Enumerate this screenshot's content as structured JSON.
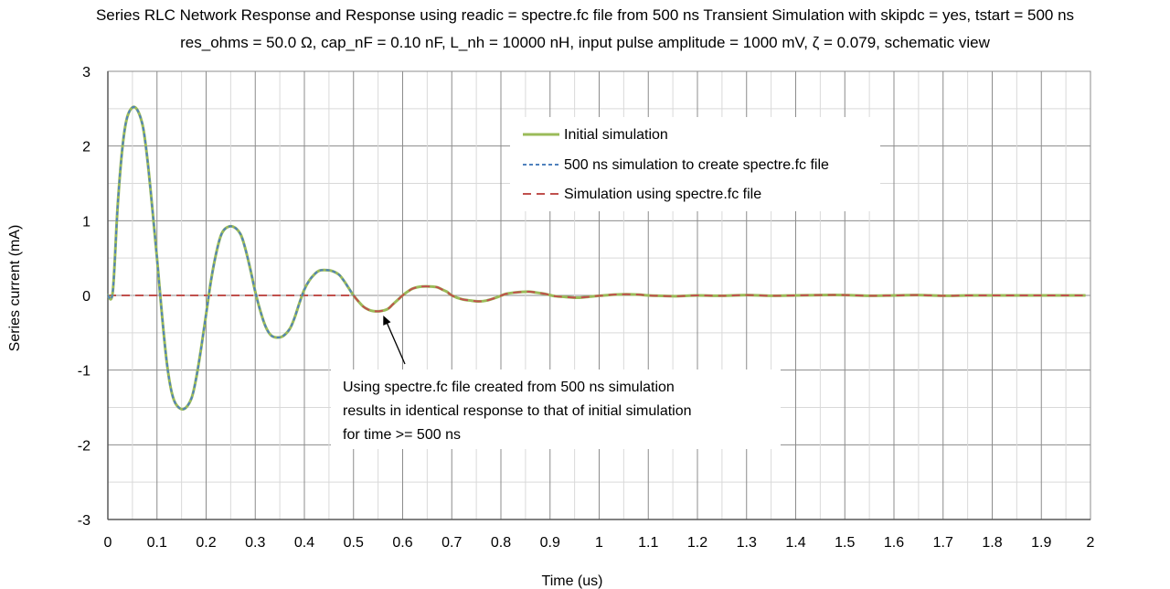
{
  "chart_data": {
    "type": "line",
    "title_lines": [
      "Series RLC Network Response and Response using readic =  spectre.fc file from 500 ns Transient Simulation with skipdc = yes, tstart = 500 ns",
      "res_ohms = 50.0 Ω, cap_nF = 0.10 nF, L_nh = 10000 nH, input pulse amplitude = 1000 mV, ζ  = 0.079, schematic view"
    ],
    "xlabel": "Time (us)",
    "ylabel": "Series current (mA)",
    "xlim": [
      0,
      2
    ],
    "ylim": [
      -3,
      3
    ],
    "x_ticks": [
      "0",
      "0.1",
      "0.2",
      "0.3",
      "0.4",
      "0.5",
      "0.6",
      "0.7",
      "0.8",
      "0.9",
      "1",
      "1.1",
      "1.2",
      "1.3",
      "1.4",
      "1.5",
      "1.6",
      "1.7",
      "1.8",
      "1.9",
      "2"
    ],
    "y_ticks": [
      "3",
      "2",
      "1",
      "0",
      "-1",
      "-2",
      "-3"
    ],
    "grid": true,
    "legend_position": "upper-right",
    "series": [
      {
        "name": "Initial simulation",
        "color": "#9bbb59",
        "style": "solid",
        "x": [
          0,
          0.01,
          0.02,
          0.03,
          0.04,
          0.055,
          0.07,
          0.08,
          0.09,
          0.1,
          0.11,
          0.12,
          0.13,
          0.14,
          0.155,
          0.17,
          0.18,
          0.19,
          0.2,
          0.21,
          0.22,
          0.23,
          0.24,
          0.255,
          0.27,
          0.28,
          0.29,
          0.3,
          0.31,
          0.32,
          0.33,
          0.34,
          0.355,
          0.37,
          0.38,
          0.39,
          0.4,
          0.41,
          0.42,
          0.43,
          0.44,
          0.455,
          0.47,
          0.48,
          0.49,
          0.5,
          0.51,
          0.52,
          0.53,
          0.54,
          0.555,
          0.57,
          0.58,
          0.59,
          0.6,
          0.61,
          0.62,
          0.63,
          0.64,
          0.655,
          0.67,
          0.68,
          0.69,
          0.7,
          0.72,
          0.74,
          0.755,
          0.77,
          0.79,
          0.81,
          0.83,
          0.855,
          0.87,
          0.89,
          0.91,
          0.93,
          0.955,
          0.97,
          0.99,
          1.01,
          1.03,
          1.055,
          1.08,
          1.1,
          1.12,
          1.155,
          1.2,
          1.25,
          1.3,
          1.35,
          1.4,
          1.45,
          1.5,
          1.55,
          1.6,
          1.65,
          1.7,
          1.75,
          1.8,
          1.85,
          1.9,
          1.95,
          1.99
        ],
        "y": [
          0,
          0.05,
          1.2,
          2.0,
          2.4,
          2.52,
          2.3,
          1.85,
          1.2,
          0.5,
          -0.25,
          -0.9,
          -1.3,
          -1.47,
          -1.52,
          -1.38,
          -1.1,
          -0.7,
          -0.25,
          0.2,
          0.55,
          0.8,
          0.9,
          0.92,
          0.82,
          0.62,
          0.35,
          0.05,
          -0.2,
          -0.4,
          -0.52,
          -0.56,
          -0.55,
          -0.45,
          -0.3,
          -0.1,
          0.08,
          0.2,
          0.28,
          0.33,
          0.34,
          0.33,
          0.28,
          0.2,
          0.1,
          0.0,
          -0.08,
          -0.15,
          -0.19,
          -0.21,
          -0.21,
          -0.18,
          -0.12,
          -0.06,
          0.0,
          0.05,
          0.09,
          0.11,
          0.12,
          0.12,
          0.11,
          0.08,
          0.05,
          0.0,
          -0.05,
          -0.07,
          -0.08,
          -0.07,
          -0.03,
          0.02,
          0.04,
          0.05,
          0.04,
          0.02,
          -0.01,
          -0.02,
          -0.03,
          -0.025,
          -0.01,
          0.0,
          0.01,
          0.015,
          0.01,
          0.0,
          -0.005,
          -0.01,
          0.0,
          -0.005,
          0.005,
          -0.005,
          0.0,
          0.005,
          0.005,
          -0.005,
          0.0,
          0.005,
          -0.005,
          0.0,
          0.0,
          0.0,
          0.0,
          0.0,
          0.0
        ]
      },
      {
        "name": "500 ns simulation to create spectre.fc file",
        "color": "#4f81bd",
        "style": "short-dash",
        "x_max": 0.5
      },
      {
        "name": "Simulation using spectre.fc file",
        "color": "#c0504d",
        "style": "long-dash",
        "x_before": [
          0,
          0.5
        ],
        "y_before": 0
      }
    ],
    "annotation": {
      "lines": [
        "Using spectre.fc file created from 500 ns simulation",
        "results in identical response to that of initial simulation",
        "for time >= 500 ns"
      ],
      "arrow_target": [
        0.555,
        -0.22
      ]
    }
  }
}
